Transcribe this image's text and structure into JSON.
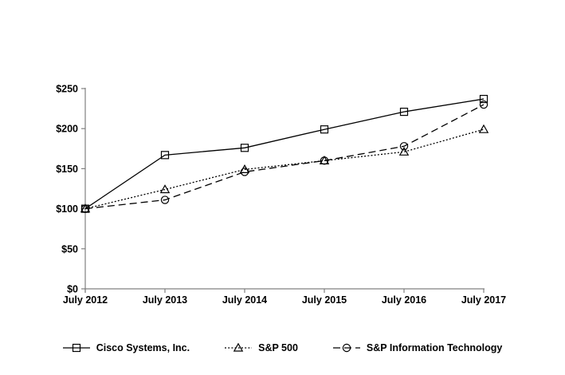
{
  "chart": {
    "y_tick_values": [
      0,
      50,
      100,
      150,
      200,
      250
    ],
    "y_tick_labels": [
      "$0",
      "$50",
      "$100",
      "$150",
      "$200",
      "$250"
    ],
    "x_labels": [
      "July 2012",
      "July 2013",
      "July 2014",
      "July 2015",
      "July 2016",
      "July 2017"
    ],
    "colors": {
      "background": "#ffffff",
      "axis": "#808080",
      "series_line": "#000000",
      "text": "#000000"
    }
  },
  "chart_data": {
    "type": "line",
    "title": "",
    "categories": [
      "July 2012",
      "July 2013",
      "July 2014",
      "July 2015",
      "July 2016",
      "July 2017"
    ],
    "series": [
      {
        "name": "Cisco Systems, Inc.",
        "marker": "square",
        "line_style": "solid",
        "values": [
          100,
          167,
          176,
          199,
          221,
          237
        ]
      },
      {
        "name": "S&P 500",
        "marker": "triangle",
        "line_style": "dotted",
        "values": [
          100,
          124,
          149,
          160,
          171,
          199
        ]
      },
      {
        "name": "S&P Information Technology",
        "marker": "circle",
        "line_style": "dashed",
        "values": [
          100,
          111,
          146,
          160,
          178,
          230
        ]
      }
    ],
    "xlabel": "",
    "ylabel": "",
    "ylim": [
      0,
      250
    ],
    "y_tick_step": 50,
    "grid": false,
    "legend_position": "bottom"
  }
}
